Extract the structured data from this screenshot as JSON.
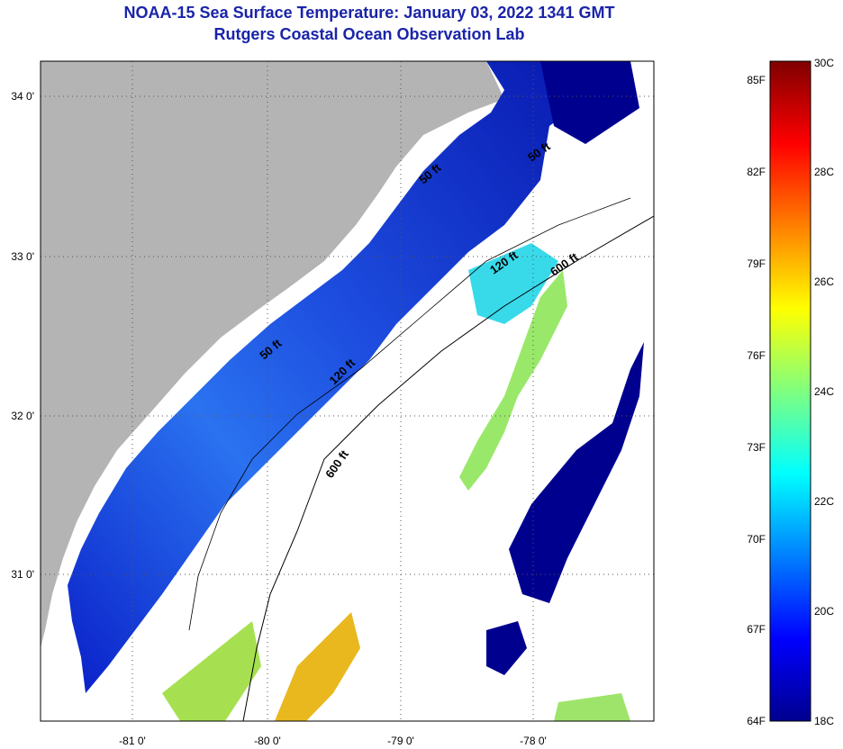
{
  "header": {
    "title": "NOAA-15 Sea Surface Temperature:  January 03, 2022 1341 GMT",
    "subtitle": "Rutgers Coastal Ocean Observation Lab"
  },
  "map": {
    "lat_labels": [
      "34 0'",
      "33 0'",
      "32 0'",
      "31 0'"
    ],
    "lon_labels": [
      "-81 0'",
      "-80 0'",
      "-79 0'",
      "-78 0'"
    ],
    "contour_labels": [
      "50 ft",
      "50 ft",
      "120 ft",
      "600 ft",
      "50 ft",
      "120 ft",
      "600 ft"
    ],
    "colors": {
      "land": "#b4b4b4",
      "ocean_nodata": "#ffffff"
    }
  },
  "colorbar": {
    "fahrenheit_labels": [
      "85F",
      "82F",
      "79F",
      "76F",
      "73F",
      "70F",
      "67F",
      "64F"
    ],
    "celsius_labels": [
      "30C",
      "28C",
      "26C",
      "24C",
      "22C",
      "20C",
      "18C"
    ],
    "range_c": [
      18,
      30
    ],
    "colormap": "jet"
  }
}
